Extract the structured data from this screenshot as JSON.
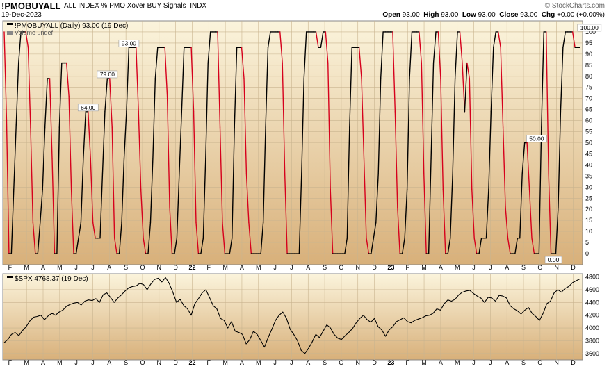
{
  "header": {
    "symbol": "!PMOBUYALL",
    "description": "ALL INDEX % PMO Xover BUY Signals",
    "exchange": "INDX",
    "date": "19-Dec-2023",
    "watermark": "© StockCharts.com",
    "open_label": "Open",
    "open": "93.00",
    "high_label": "High",
    "high": "93.00",
    "low_label": "Low",
    "low": "93.00",
    "close_label": "Close",
    "close": "93.00",
    "chg_label": "Chg",
    "chg": "+0.00 (+0.00%)"
  },
  "legend": {
    "main": "!PMOBUYALL (Daily) 93.00 (19 Dec)",
    "volume": "Volume undef",
    "spx": "$SPX 4768.37 (19 Dec)"
  },
  "colors": {
    "rising": "#000000",
    "falling": "#d6001c",
    "spx": "#000000",
    "bg_top": "#fbf4dc",
    "bg_bottom": "#d8b07a"
  },
  "chart_data": [
    {
      "type": "line",
      "title": "!PMOBUYALL (Daily)",
      "ylim": [
        -5,
        105
      ],
      "y_ticks": [
        0,
        5,
        10,
        15,
        20,
        25,
        30,
        35,
        40,
        45,
        50,
        55,
        60,
        65,
        70,
        75,
        80,
        85,
        90,
        95,
        100
      ],
      "month_labels": [
        "F",
        "M",
        "A",
        "M",
        "J",
        "J",
        "A",
        "S",
        "O",
        "N",
        "D",
        "22",
        "F",
        "M",
        "A",
        "M",
        "J",
        "J",
        "A",
        "S",
        "O",
        "N",
        "D",
        "23",
        "F",
        "M",
        "A",
        "M",
        "J",
        "J",
        "A",
        "S",
        "O",
        "N",
        "D"
      ],
      "series": [
        {
          "name": "!PMOBUYALL",
          "coloring": "black when rising, red when falling",
          "values": [
            100,
            60,
            0,
            0,
            29,
            58,
            86,
            100,
            100,
            100,
            93,
            57,
            14,
            0,
            0,
            14,
            29,
            57,
            79,
            79,
            43,
            0,
            0,
            57,
            86,
            86,
            86,
            71,
            29,
            0,
            0,
            7,
            14,
            43,
            64,
            64,
            43,
            14,
            7,
            7,
            7,
            36,
            64,
            79,
            79,
            57,
            7,
            0,
            0,
            14,
            43,
            64,
            93,
            93,
            93,
            93,
            64,
            29,
            7,
            0,
            0,
            14,
            43,
            79,
            93,
            93,
            93,
            93,
            71,
            21,
            0,
            0,
            7,
            36,
            64,
            93,
            93,
            93,
            93,
            64,
            14,
            0,
            0,
            7,
            43,
            86,
            100,
            100,
            100,
            100,
            57,
            14,
            0,
            0,
            0,
            7,
            57,
            93,
            93,
            93,
            79,
            36,
            14,
            0,
            0,
            0,
            0,
            0,
            14,
            57,
            93,
            100,
            100,
            100,
            100,
            100,
            86,
            36,
            0,
            0,
            0,
            0,
            0,
            0,
            36,
            79,
            100,
            100,
            100,
            100,
            100,
            93,
            93,
            100,
            100,
            86,
            29,
            0,
            0,
            0,
            0,
            0,
            0,
            7,
            57,
            93,
            93,
            93,
            93,
            79,
            43,
            7,
            0,
            0,
            7,
            14,
            36,
            79,
            100,
            100,
            100,
            100,
            100,
            64,
            21,
            0,
            0,
            7,
            29,
            79,
            100,
            100,
            100,
            100,
            86,
            36,
            0,
            0,
            43,
            86,
            100,
            100,
            79,
            29,
            0,
            0,
            7,
            36,
            79,
            100,
            100,
            86,
            64,
            86,
            79,
            29,
            7,
            0,
            0,
            7,
            7,
            7,
            29,
            64,
            93,
            100,
            100,
            93,
            57,
            21,
            7,
            0,
            0,
            0,
            7,
            7,
            36,
            50,
            50,
            29,
            7,
            0,
            0,
            0,
            57,
            100,
            100,
            36,
            0,
            0,
            0,
            21,
            64,
            93,
            100,
            100,
            100,
            100,
            93,
            93,
            93
          ]
        }
      ],
      "annotations": [
        {
          "x_index": 35,
          "value": 64,
          "label": "64.00"
        },
        {
          "x_index": 43,
          "value": 79,
          "label": "79.00"
        },
        {
          "x_index": 52,
          "value": 93,
          "label": "93.00"
        },
        {
          "x_index": 222,
          "value": 50,
          "label": "50.00"
        },
        {
          "x_index": 229,
          "value": 0,
          "label": "0.00"
        },
        {
          "x_index": 244,
          "value": 100,
          "label": "100.00"
        }
      ]
    },
    {
      "type": "line",
      "title": "$SPX",
      "ylim": [
        3500,
        4850
      ],
      "y_ticks": [
        3600,
        3800,
        4000,
        4200,
        4400,
        4600,
        4800
      ],
      "month_labels": [
        "F",
        "M",
        "A",
        "M",
        "J",
        "J",
        "A",
        "S",
        "O",
        "N",
        "D",
        "22",
        "F",
        "M",
        "A",
        "M",
        "J",
        "J",
        "A",
        "S",
        "O",
        "N",
        "D",
        "23",
        "F",
        "M",
        "A",
        "M",
        "J",
        "J",
        "A",
        "S",
        "O",
        "N",
        "D"
      ],
      "series": [
        {
          "name": "$SPX",
          "values": [
            3770,
            3820,
            3900,
            3930,
            3880,
            3960,
            4020,
            4110,
            4170,
            4180,
            4200,
            4130,
            4190,
            4230,
            4200,
            4250,
            4280,
            4340,
            4370,
            4390,
            4400,
            4360,
            4420,
            4440,
            4430,
            4460,
            4400,
            4520,
            4550,
            4480,
            4400,
            4470,
            4520,
            4580,
            4630,
            4650,
            4660,
            4700,
            4680,
            4600,
            4690,
            4760,
            4780,
            4720,
            4790,
            4700,
            4560,
            4400,
            4450,
            4350,
            4300,
            4200,
            4380,
            4460,
            4550,
            4600,
            4480,
            4350,
            4300,
            4150,
            4120,
            4000,
            4100,
            3950,
            3930,
            3900,
            3750,
            3820,
            3950,
            3900,
            3800,
            3700,
            3850,
            3980,
            4120,
            4200,
            4250,
            4150,
            3980,
            3900,
            3800,
            3650,
            3600,
            3680,
            3780,
            3900,
            3850,
            3950,
            4050,
            4000,
            3900,
            3840,
            3820,
            3880,
            3930,
            3990,
            4080,
            4150,
            4200,
            4130,
            4090,
            4150,
            4020,
            3970,
            3870,
            3970,
            4020,
            4100,
            4130,
            4160,
            4100,
            4080,
            4120,
            4140,
            4160,
            4190,
            4200,
            4230,
            4300,
            4280,
            4380,
            4440,
            4420,
            4450,
            4520,
            4560,
            4580,
            4590,
            4540,
            4500,
            4470,
            4400,
            4480,
            4470,
            4420,
            4510,
            4500,
            4470,
            4350,
            4300,
            4270,
            4220,
            4280,
            4320,
            4230,
            4180,
            4120,
            4230,
            4380,
            4420,
            4550,
            4600,
            4560,
            4620,
            4650,
            4710,
            4740,
            4768
          ]
        }
      ]
    }
  ]
}
